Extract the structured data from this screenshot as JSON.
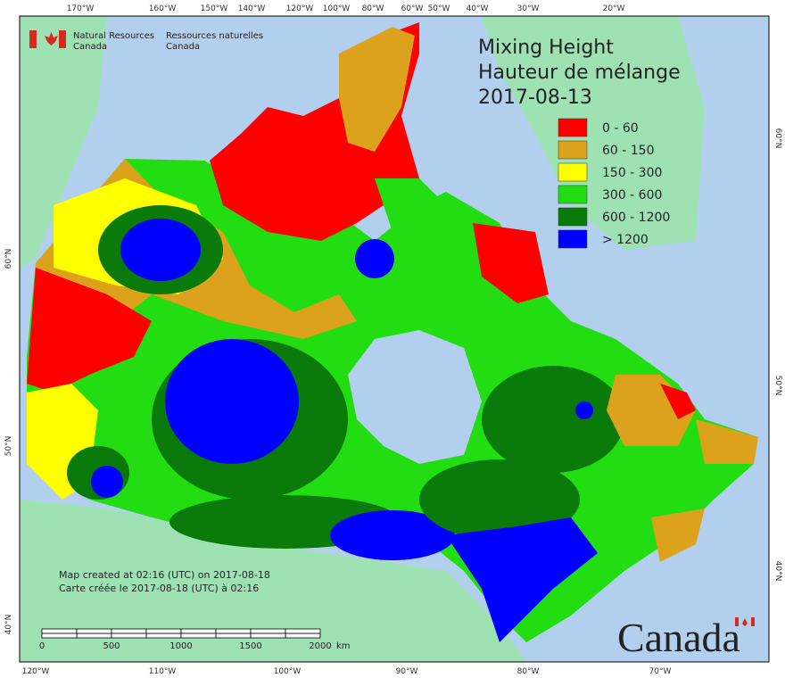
{
  "department": {
    "en": [
      "Natural Resources",
      "Canada"
    ],
    "fr": [
      "Ressources naturelles",
      "Canada"
    ]
  },
  "title": [
    "Mixing Height",
    "Hauteur de mélange",
    "2017-08-13"
  ],
  "legend": [
    {
      "label": "0 - 60",
      "color": "#ff0000"
    },
    {
      "label": "60 - 150",
      "color": "#dca21c"
    },
    {
      "label": "150 - 300",
      "color": "#ffff00"
    },
    {
      "label": "300 - 600",
      "color": "#22dd11"
    },
    {
      "label": "600 - 1200",
      "color": "#0a7a0a"
    },
    {
      "label": "> 1200",
      "color": "#0000ff"
    }
  ],
  "graticule": {
    "top": [
      "170°W",
      "160°W",
      "150°W",
      "140°W",
      "120°W",
      "100°W",
      "80°W",
      "60°W",
      "50°W",
      "40°W",
      "30°W",
      "20°W"
    ],
    "bottom": [
      "120°W",
      "110°W",
      "100°W",
      "90°W",
      "80°W",
      "70°W"
    ],
    "left": [
      "60°N",
      "50°N",
      "40°N"
    ],
    "right": [
      "60°N",
      "50°N",
      "40°N"
    ]
  },
  "notes": [
    "Map created at 02:16 (UTC) on 2017-08-18",
    "Carte créée le 2017-08-18 (UTC) à 02:16"
  ],
  "scale_bar": {
    "labels": [
      "0",
      "500",
      "1000",
      "1500",
      "2000"
    ],
    "unit": "km"
  },
  "wordmark": "Canada"
}
